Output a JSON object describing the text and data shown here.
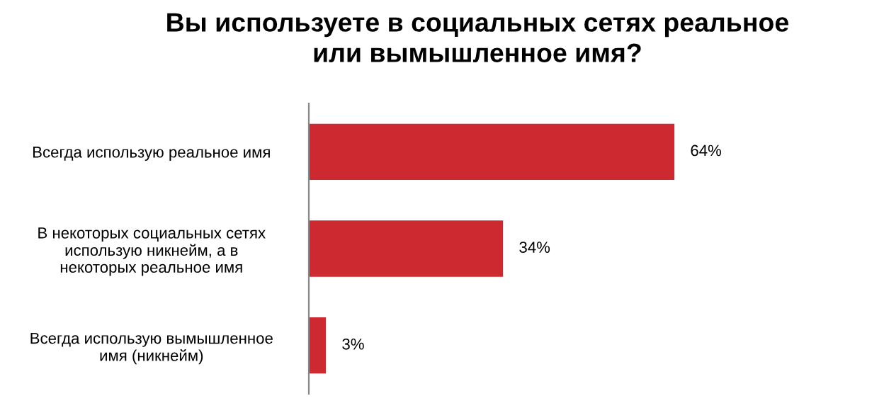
{
  "chart_data": {
    "type": "bar",
    "orientation": "horizontal",
    "title": "Вы используете в социальных сетях реальное\nили вымышленное имя?",
    "categories": [
      "Всегда использую реальное имя",
      "В некоторых социальных сетях\nиспользую никнейм, а в\nнекоторых реальное имя",
      "Всегда использую вымышленное\nимя (никнейм)"
    ],
    "values": [
      64,
      34,
      3
    ],
    "value_labels": [
      "64%",
      "34%",
      "3%"
    ],
    "color": "#cc2a30",
    "tick_labels": "y"
  }
}
